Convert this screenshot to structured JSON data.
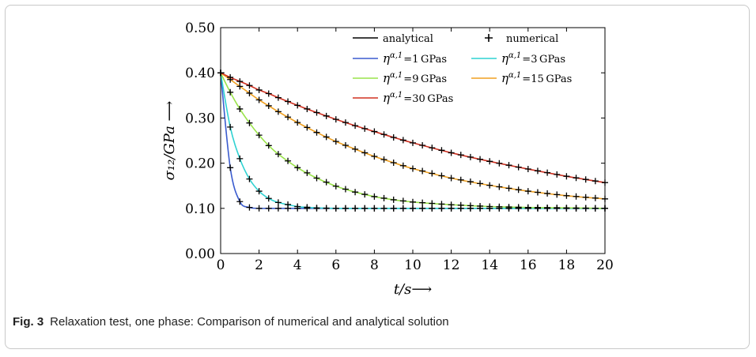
{
  "figure": {
    "caption_label": "Fig. 3",
    "caption_text": "Relaxation test, one phase: Comparison of numerical and analytical solution"
  },
  "chart_data": {
    "type": "line",
    "xlabel": "t/s⟶",
    "ylabel": "σ₁₂/GPa ⟶",
    "xlim": [
      0,
      20
    ],
    "ylim": [
      0,
      0.5
    ],
    "x_ticks": [
      0,
      2,
      4,
      6,
      8,
      10,
      12,
      14,
      16,
      18,
      20
    ],
    "x_tick_labels": [
      "0",
      "2",
      "4",
      "6",
      "8",
      "10",
      "12",
      "14",
      "16",
      "18",
      "20"
    ],
    "y_ticks": [
      0,
      0.1,
      0.2,
      0.3,
      0.4,
      0.5
    ],
    "y_tick_labels": [
      "0.00",
      "0.10",
      "0.20",
      "0.30",
      "0.40",
      "0.50"
    ],
    "grid": false,
    "legend_position": "top-right",
    "x": [
      0,
      0.5,
      1,
      1.5,
      2,
      2.5,
      3,
      4,
      5,
      6,
      7,
      8,
      9,
      10,
      12,
      14,
      16,
      18,
      20
    ],
    "series": [
      {
        "name": "η^{α,1} = 1 GPas",
        "color": "#3b5ccf",
        "values": [
          0.4,
          0.19,
          0.115,
          0.102,
          0.1,
          0.1,
          0.1,
          0.1,
          0.1,
          0.1,
          0.1,
          0.1,
          0.1,
          0.1,
          0.1,
          0.1,
          0.1,
          0.1,
          0.1
        ]
      },
      {
        "name": "η^{α,1} = 3 GPas",
        "color": "#2fd2d2",
        "values": [
          0.4,
          0.28,
          0.21,
          0.165,
          0.138,
          0.122,
          0.113,
          0.104,
          0.101,
          0.1,
          0.1,
          0.1,
          0.1,
          0.1,
          0.1,
          0.1,
          0.1,
          0.1,
          0.1
        ]
      },
      {
        "name": "η^{α,1} = 9 GPas",
        "color": "#9ae34a",
        "values": [
          0.4,
          0.357,
          0.32,
          0.289,
          0.262,
          0.239,
          0.22,
          0.19,
          0.167,
          0.149,
          0.136,
          0.126,
          0.119,
          0.114,
          0.108,
          0.104,
          0.102,
          0.101,
          0.1
        ]
      },
      {
        "name": "η^{α,1} = 15 GPas",
        "color": "#f0a020",
        "values": [
          0.4,
          0.385,
          0.37,
          0.355,
          0.34,
          0.327,
          0.314,
          0.29,
          0.268,
          0.248,
          0.231,
          0.215,
          0.201,
          0.188,
          0.167,
          0.151,
          0.138,
          0.128,
          0.121
        ]
      },
      {
        "name": "η^{α,1} = 30 GPas",
        "color": "#d03020",
        "values": [
          0.4,
          0.39,
          0.381,
          0.372,
          0.362,
          0.354,
          0.345,
          0.328,
          0.312,
          0.297,
          0.283,
          0.27,
          0.257,
          0.245,
          0.223,
          0.204,
          0.187,
          0.171,
          0.157
        ]
      }
    ],
    "legend": {
      "analytical_label": "analytical",
      "numerical_label": "numerical",
      "series_prefix": "η",
      "series_superscript": "α,1",
      "series_values": [
        "=1 GPas",
        "=3 GPas",
        "=9 GPas",
        "=15 GPas",
        "=30 GPas"
      ]
    }
  }
}
